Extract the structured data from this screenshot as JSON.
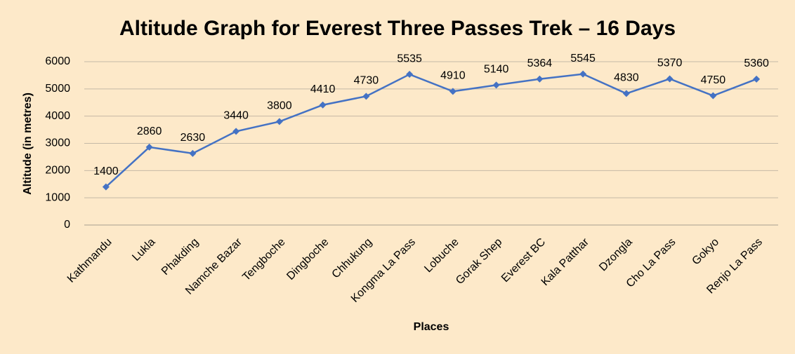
{
  "chart_data": {
    "type": "line",
    "title": "Altitude Graph for Everest Three Passes Trek – 16 Days",
    "x_label": "Places",
    "y_label": "Altitude (in metres)",
    "categories": [
      "Kathmandu",
      "Lukla",
      "Phakding",
      "Namche Bazar",
      "Tengboche",
      "Dingboche",
      "Chhukung",
      "Kongma La Pass",
      "Lobuche",
      "Gorak Shep",
      "Everest BC",
      "Kala Patthar",
      "Dzongla",
      "Cho La Pass",
      "Gokyo",
      "Renjo La Pass"
    ],
    "values": [
      1400,
      2860,
      2630,
      3440,
      3800,
      4410,
      4730,
      5535,
      4910,
      5140,
      5364,
      5545,
      4830,
      5370,
      4750,
      5360
    ],
    "color": "#4472c4",
    "ylim": [
      0,
      6000
    ],
    "yticks": [
      0,
      1000,
      2000,
      3000,
      4000,
      5000,
      6000
    ],
    "grid": true
  }
}
